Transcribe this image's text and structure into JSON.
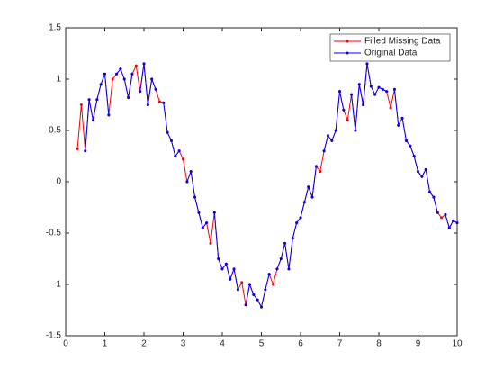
{
  "chart_data": {
    "type": "line",
    "x": [
      0.3,
      0.4,
      0.5,
      0.6,
      0.7,
      0.8,
      0.9,
      1.0,
      1.1,
      1.2,
      1.3,
      1.4,
      1.5,
      1.6,
      1.7,
      1.8,
      1.9,
      2.0,
      2.1,
      2.2,
      2.3,
      2.4,
      2.5,
      2.6,
      2.7,
      2.8,
      2.9,
      3.0,
      3.1,
      3.2,
      3.3,
      3.4,
      3.5,
      3.6,
      3.7,
      3.8,
      3.9,
      4.0,
      4.1,
      4.2,
      4.3,
      4.4,
      4.5,
      4.6,
      4.7,
      4.8,
      4.9,
      5.0,
      5.1,
      5.2,
      5.3,
      5.4,
      5.5,
      5.6,
      5.7,
      5.8,
      5.9,
      6.0,
      6.1,
      6.2,
      6.3,
      6.4,
      6.5,
      6.6,
      6.7,
      6.8,
      6.9,
      7.0,
      7.1,
      7.2,
      7.3,
      7.4,
      7.5,
      7.6,
      7.7,
      7.8,
      7.9,
      8.0,
      8.1,
      8.2,
      8.3,
      8.4,
      8.5,
      8.6,
      8.7,
      8.8,
      8.9,
      9.0,
      9.1,
      9.2,
      9.3,
      9.4,
      9.5,
      9.6,
      9.7,
      9.8,
      9.9,
      10.0
    ],
    "series": [
      {
        "name": "Filled Missing Data",
        "color": "#ff0000",
        "values": [
          0.32,
          0.75,
          0.3,
          0.8,
          0.6,
          0.8,
          0.95,
          1.05,
          0.65,
          1.0,
          1.05,
          1.1,
          1.0,
          0.82,
          1.05,
          1.13,
          0.88,
          1.15,
          0.75,
          1.0,
          0.9,
          0.78,
          0.77,
          0.48,
          0.4,
          0.25,
          0.3,
          0.22,
          0.0,
          0.1,
          -0.15,
          -0.3,
          -0.45,
          -0.4,
          -0.6,
          -0.3,
          -0.75,
          -0.85,
          -0.8,
          -0.95,
          -0.85,
          -1.05,
          -0.98,
          -1.2,
          -1.0,
          -1.1,
          -1.15,
          -1.22,
          -1.05,
          -0.9,
          -1.0,
          -0.85,
          -0.75,
          -0.6,
          -0.85,
          -0.55,
          -0.4,
          -0.35,
          -0.2,
          -0.05,
          -0.15,
          0.15,
          0.1,
          0.3,
          0.45,
          0.4,
          0.5,
          0.88,
          0.7,
          0.6,
          0.85,
          0.5,
          0.95,
          0.75,
          1.15,
          0.93,
          0.85,
          0.92,
          0.9,
          0.88,
          0.72,
          0.9,
          0.55,
          0.62,
          0.4,
          0.35,
          0.25,
          0.1,
          0.05,
          0.12,
          -0.1,
          -0.15,
          -0.3,
          -0.35,
          -0.32,
          -0.45,
          -0.38,
          -0.4
        ]
      },
      {
        "name": "Original Data",
        "color": "#0000ff",
        "values": [
          null,
          null,
          0.3,
          0.8,
          0.6,
          0.8,
          0.95,
          1.05,
          0.65,
          null,
          1.05,
          1.1,
          1.0,
          0.82,
          1.05,
          null,
          0.88,
          1.15,
          0.75,
          1.0,
          0.9,
          null,
          0.77,
          0.48,
          0.4,
          0.25,
          0.3,
          null,
          0.0,
          0.1,
          -0.15,
          -0.3,
          -0.45,
          -0.4,
          null,
          -0.3,
          -0.75,
          -0.85,
          -0.8,
          -0.95,
          -0.85,
          -1.05,
          null,
          -1.2,
          -1.0,
          -1.1,
          -1.15,
          -1.22,
          -1.05,
          -0.9,
          null,
          -0.85,
          -0.75,
          -0.6,
          -0.85,
          -0.55,
          -0.4,
          -0.35,
          -0.2,
          -0.05,
          -0.15,
          0.15,
          null,
          0.3,
          0.45,
          0.4,
          0.5,
          0.88,
          0.7,
          null,
          0.85,
          0.5,
          0.95,
          0.75,
          1.15,
          0.93,
          0.85,
          0.92,
          0.9,
          0.88,
          null,
          0.9,
          0.55,
          0.62,
          0.4,
          0.35,
          0.25,
          0.1,
          0.05,
          0.12,
          -0.1,
          -0.15,
          -0.3,
          null,
          -0.32,
          -0.45,
          -0.38,
          -0.4
        ]
      }
    ],
    "xlim": [
      0,
      10
    ],
    "xticks": [
      0,
      1,
      2,
      3,
      4,
      5,
      6,
      7,
      8,
      9,
      10
    ],
    "ylim": [
      -1.5,
      1.5
    ],
    "yticks": [
      -1.5,
      -1,
      -0.5,
      0,
      0.5,
      1,
      1.5
    ],
    "legend": "upper right"
  }
}
